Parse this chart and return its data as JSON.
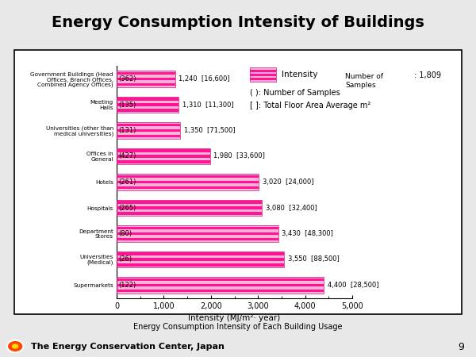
{
  "title": "Energy Consumption Intensity of Buildings",
  "categories": [
    "Government Buildings (Head\nOffices, Branch Offices,\nCombined Agency Offices)",
    "Meeting\nHalls",
    "Universities (other than\nmedical universities)",
    "Offices in\nGeneral",
    "Hotels",
    "Hospitals",
    "Department\nStores",
    "Universities\n(Medical)",
    "Supermarkets"
  ],
  "values": [
    1240,
    1310,
    1350,
    1980,
    3020,
    3080,
    3430,
    3550,
    4400
  ],
  "samples": [
    362,
    135,
    131,
    427,
    261,
    265,
    80,
    26,
    122
  ],
  "floor_areas": [
    16600,
    11300,
    71500,
    33600,
    24000,
    32400,
    48300,
    88500,
    28500
  ],
  "bar_color_light": "#FFB3D9",
  "bar_color_dark": "#FF1493",
  "bar_color_stripe1": "#FF69B4",
  "xlabel": "Intensity (MJ/m²· year)",
  "xlim": [
    0,
    5000
  ],
  "xticks": [
    0,
    1000,
    2000,
    3000,
    4000,
    5000
  ],
  "xtick_labels": [
    "0",
    "1,000",
    "2,000",
    "3,000",
    "4,000",
    "5,000"
  ],
  "legend_intensity_label": "Intensity",
  "legend_samples_label": "Number of\nSamples",
  "legend_samples_value": ": 1,809",
  "legend_note1": "( ): Number of Samples",
  "legend_note2": "[ ]: Total Floor Area Average m²",
  "subtitle": "Energy Consumption Intensity of Each Building Usage",
  "footer": "The Energy Conservation Center, Japan",
  "page": "9",
  "background_title": "#d9e5f3",
  "background_chart": "#ffffff",
  "background_outer": "#e8e8e8",
  "border_color": "#000000",
  "footer_circle_color": "#FF4500"
}
